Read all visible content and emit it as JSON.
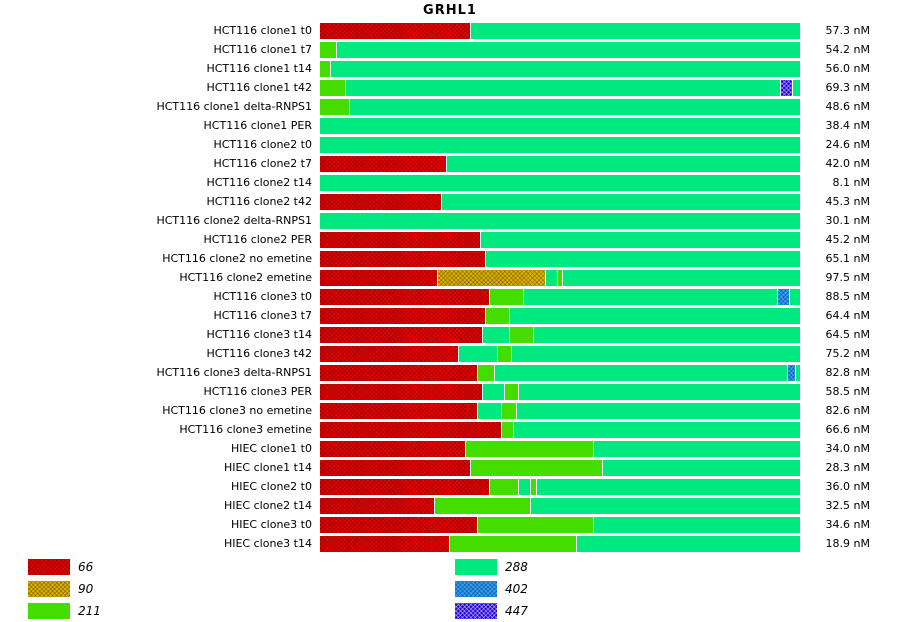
{
  "title": "GRHL1",
  "chart_data": {
    "type": "bar",
    "orientation": "horizontal",
    "stacked": true,
    "title": "GRHL1",
    "value_unit": "nM",
    "layout": {
      "bars_span_full_width": true,
      "xlim_percent": [
        0,
        100
      ],
      "legend_position": "bottom",
      "grid": false
    },
    "series_keys": [
      "66",
      "90",
      "211",
      "288",
      "402",
      "447"
    ],
    "series_styles": {
      "66": {
        "color": "#ee0000",
        "pattern": "dark"
      },
      "90": {
        "color": "#e0b400",
        "pattern": "dark"
      },
      "211": {
        "color": "#44dd00",
        "pattern": null
      },
      "288": {
        "color": "#00e97e",
        "pattern": null
      },
      "402": {
        "color": "#2f9fff",
        "pattern": "dark"
      },
      "447": {
        "color": "#2200dd",
        "pattern": "light"
      }
    },
    "rows": [
      {
        "label": "HCT116 clone1 t0",
        "value": "57.3 nM",
        "segments": [
          {
            "key": "66",
            "pct": 31.5
          },
          {
            "key": "288",
            "pct": 68.5
          }
        ]
      },
      {
        "label": "HCT116 clone1 t7",
        "value": "54.2 nM",
        "segments": [
          {
            "key": "211",
            "pct": 3.5
          },
          {
            "key": "288",
            "pct": 96.5
          }
        ]
      },
      {
        "label": "HCT116 clone1 t14",
        "value": "56.0 nM",
        "segments": [
          {
            "key": "211",
            "pct": 2.2
          },
          {
            "key": "288",
            "pct": 97.8
          }
        ]
      },
      {
        "label": "HCT116 clone1 t42",
        "value": "69.3 nM",
        "segments": [
          {
            "key": "211",
            "pct": 5.5
          },
          {
            "key": "288",
            "pct": 90.5
          },
          {
            "key": "447",
            "pct": 2.5
          },
          {
            "key": "288",
            "pct": 1.5
          }
        ]
      },
      {
        "label": "HCT116 clone1 delta-RNPS1",
        "value": "48.6 nM",
        "segments": [
          {
            "key": "211",
            "pct": 6.2
          },
          {
            "key": "288",
            "pct": 93.8
          }
        ]
      },
      {
        "label": "HCT116 clone1 PER",
        "value": "38.4 nM",
        "segments": [
          {
            "key": "288",
            "pct": 100
          }
        ]
      },
      {
        "label": "HCT116 clone2 t0",
        "value": "24.6 nM",
        "segments": [
          {
            "key": "288",
            "pct": 100
          }
        ]
      },
      {
        "label": "HCT116 clone2 t7",
        "value": "42.0 nM",
        "segments": [
          {
            "key": "66",
            "pct": 26.5
          },
          {
            "key": "288",
            "pct": 73.5
          }
        ]
      },
      {
        "label": "HCT116 clone2 t14",
        "value": "8.1 nM",
        "segments": [
          {
            "key": "288",
            "pct": 100
          }
        ]
      },
      {
        "label": "HCT116 clone2 t42",
        "value": "45.3 nM",
        "segments": [
          {
            "key": "66",
            "pct": 25.5
          },
          {
            "key": "288",
            "pct": 74.5
          }
        ]
      },
      {
        "label": "HCT116 clone2 delta-RNPS1",
        "value": "30.1 nM",
        "segments": [
          {
            "key": "288",
            "pct": 100
          }
        ]
      },
      {
        "label": "HCT116 clone2 PER",
        "value": "45.2 nM",
        "segments": [
          {
            "key": "66",
            "pct": 33.5
          },
          {
            "key": "288",
            "pct": 66.5
          }
        ]
      },
      {
        "label": "HCT116 clone2 no emetine",
        "value": "65.1 nM",
        "segments": [
          {
            "key": "66",
            "pct": 34.5
          },
          {
            "key": "288",
            "pct": 65.5
          }
        ]
      },
      {
        "label": "HCT116 clone2 emetine",
        "value": "97.5 nM",
        "segments": [
          {
            "key": "66",
            "pct": 24.5
          },
          {
            "key": "90",
            "pct": 22.5
          },
          {
            "key": "288",
            "pct": 2.5
          },
          {
            "key": "211",
            "pct": 1.2
          },
          {
            "key": "288",
            "pct": 49.3
          }
        ]
      },
      {
        "label": "HCT116 clone3 t0",
        "value": "88.5 nM",
        "segments": [
          {
            "key": "66",
            "pct": 35.5
          },
          {
            "key": "211",
            "pct": 7
          },
          {
            "key": "288",
            "pct": 53
          },
          {
            "key": "402",
            "pct": 2.5
          },
          {
            "key": "288",
            "pct": 2
          }
        ]
      },
      {
        "label": "HCT116 clone3 t7",
        "value": "64.4 nM",
        "segments": [
          {
            "key": "66",
            "pct": 34.5
          },
          {
            "key": "211",
            "pct": 5
          },
          {
            "key": "288",
            "pct": 60.5
          }
        ]
      },
      {
        "label": "HCT116 clone3 t14",
        "value": "64.5 nM",
        "segments": [
          {
            "key": "66",
            "pct": 34
          },
          {
            "key": "288",
            "pct": 5.5
          },
          {
            "key": "211",
            "pct": 5
          },
          {
            "key": "288",
            "pct": 55.5
          }
        ]
      },
      {
        "label": "HCT116 clone3 t42",
        "value": "75.2 nM",
        "segments": [
          {
            "key": "66",
            "pct": 29
          },
          {
            "key": "288",
            "pct": 8
          },
          {
            "key": "211",
            "pct": 3
          },
          {
            "key": "288",
            "pct": 60
          }
        ]
      },
      {
        "label": "HCT116 clone3 delta-RNPS1",
        "value": "82.8 nM",
        "segments": [
          {
            "key": "66",
            "pct": 33
          },
          {
            "key": "211",
            "pct": 3.5
          },
          {
            "key": "288",
            "pct": 61
          },
          {
            "key": "402",
            "pct": 1.7
          },
          {
            "key": "288",
            "pct": 0.8
          }
        ]
      },
      {
        "label": "HCT116 clone3 PER",
        "value": "58.5 nM",
        "segments": [
          {
            "key": "66",
            "pct": 34
          },
          {
            "key": "288",
            "pct": 4.5
          },
          {
            "key": "211",
            "pct": 3
          },
          {
            "key": "288",
            "pct": 58.5
          }
        ]
      },
      {
        "label": "HCT116 clone3 no emetine",
        "value": "82.6 nM",
        "segments": [
          {
            "key": "66",
            "pct": 33
          },
          {
            "key": "288",
            "pct": 5
          },
          {
            "key": "211",
            "pct": 3
          },
          {
            "key": "288",
            "pct": 59
          }
        ]
      },
      {
        "label": "HCT116 clone3 emetine",
        "value": "66.6 nM",
        "segments": [
          {
            "key": "66",
            "pct": 38
          },
          {
            "key": "211",
            "pct": 2.5
          },
          {
            "key": "288",
            "pct": 59.5
          }
        ]
      },
      {
        "label": "HIEC clone1 t0",
        "value": "34.0 nM",
        "segments": [
          {
            "key": "66",
            "pct": 30.5
          },
          {
            "key": "211",
            "pct": 26.5
          },
          {
            "key": "288",
            "pct": 43
          }
        ]
      },
      {
        "label": "HIEC clone1 t14",
        "value": "28.3 nM",
        "segments": [
          {
            "key": "66",
            "pct": 31.5
          },
          {
            "key": "211",
            "pct": 27.5
          },
          {
            "key": "288",
            "pct": 41
          }
        ]
      },
      {
        "label": "HIEC clone2 t0",
        "value": "36.0 nM",
        "segments": [
          {
            "key": "66",
            "pct": 35.5
          },
          {
            "key": "211",
            "pct": 6
          },
          {
            "key": "288",
            "pct": 2.5
          },
          {
            "key": "211",
            "pct": 1.2
          },
          {
            "key": "288",
            "pct": 54.8
          }
        ]
      },
      {
        "label": "HIEC clone2 t14",
        "value": "32.5 nM",
        "segments": [
          {
            "key": "66",
            "pct": 24
          },
          {
            "key": "211",
            "pct": 20
          },
          {
            "key": "288",
            "pct": 56
          }
        ]
      },
      {
        "label": "HIEC clone3 t0",
        "value": "34.6 nM",
        "segments": [
          {
            "key": "66",
            "pct": 33
          },
          {
            "key": "211",
            "pct": 24
          },
          {
            "key": "288",
            "pct": 43
          }
        ]
      },
      {
        "label": "HIEC clone3 t14",
        "value": "18.9 nM",
        "segments": [
          {
            "key": "66",
            "pct": 27
          },
          {
            "key": "211",
            "pct": 26.5
          },
          {
            "key": "288",
            "pct": 46.5
          }
        ]
      }
    ]
  },
  "legend": {
    "columns": [
      {
        "items": [
          {
            "key": "66",
            "label": "66"
          },
          {
            "key": "90",
            "label": "90"
          },
          {
            "key": "211",
            "label": "211"
          }
        ]
      },
      {
        "items": [
          {
            "key": "288",
            "label": "288"
          },
          {
            "key": "402",
            "label": "402"
          },
          {
            "key": "447",
            "label": "447"
          }
        ]
      }
    ]
  }
}
